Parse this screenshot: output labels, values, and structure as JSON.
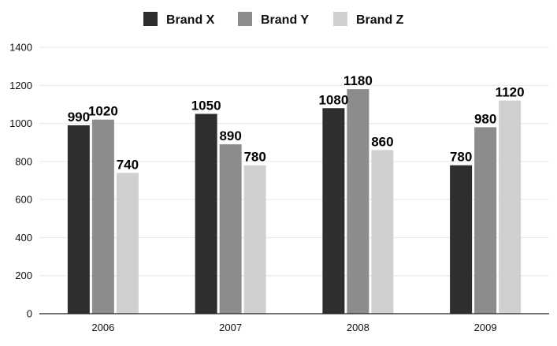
{
  "chart_data": {
    "type": "bar",
    "title": "",
    "xlabel": "",
    "ylabel": "",
    "categories": [
      "2006",
      "2007",
      "2008",
      "2009"
    ],
    "series": [
      {
        "name": "Brand X",
        "color": "#2e2e2e",
        "values": [
          990,
          1050,
          1080,
          780
        ]
      },
      {
        "name": "Brand Y",
        "color": "#8c8c8c",
        "values": [
          1020,
          890,
          1180,
          980
        ]
      },
      {
        "name": "Brand Z",
        "color": "#d0d0d0",
        "values": [
          740,
          780,
          860,
          1120
        ]
      }
    ],
    "ylim": [
      0,
      1400
    ],
    "yticks": [
      0,
      200,
      400,
      600,
      800,
      1000,
      1200,
      1400
    ],
    "grid": true,
    "legend_position": "top-center",
    "data_labels": true
  }
}
